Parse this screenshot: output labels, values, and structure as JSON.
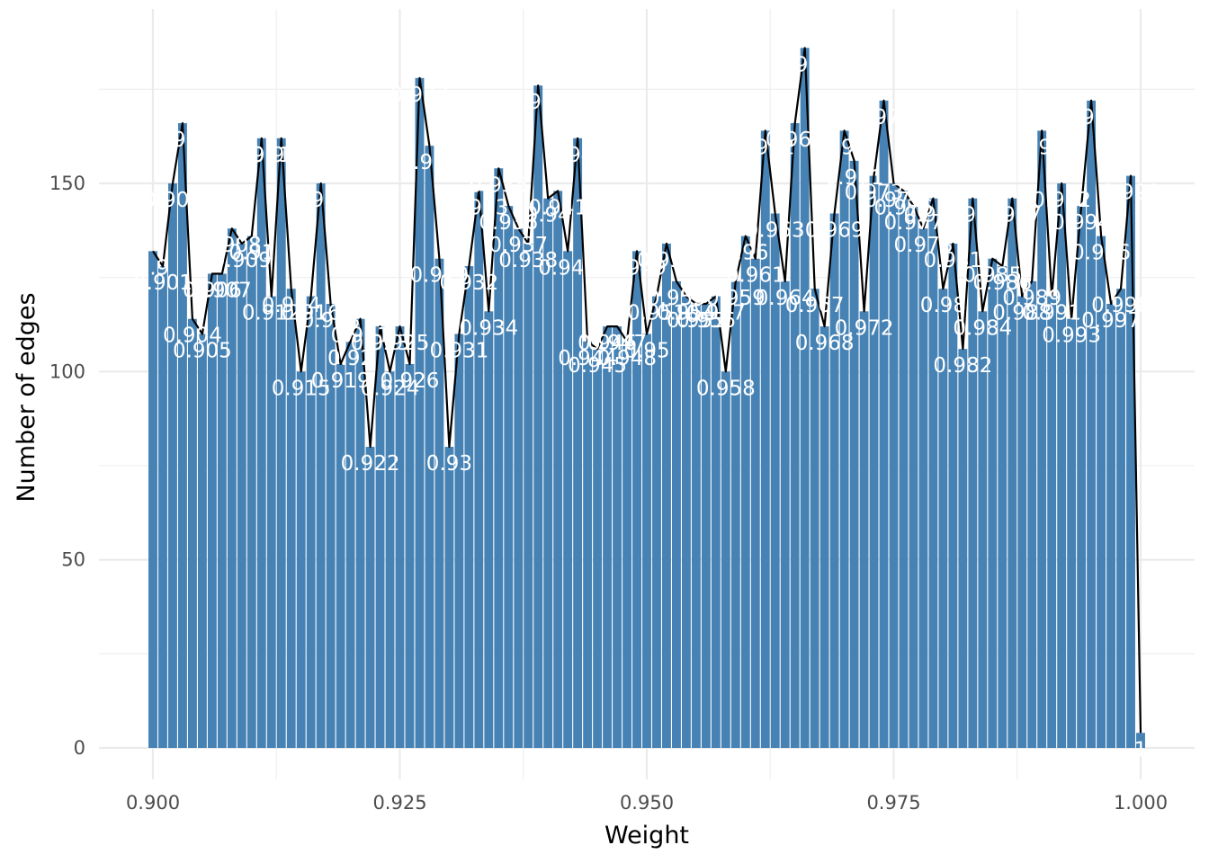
{
  "chart_data": {
    "type": "bar",
    "xlabel": "Weight",
    "ylabel": "Number of edges",
    "xlim": [
      0.895,
      1.001
    ],
    "ylim": [
      -8,
      186
    ],
    "x_ticks": [
      0.9,
      0.925,
      0.95,
      0.975,
      1.0
    ],
    "x_tick_labels": [
      "0.900",
      "0.925",
      "0.950",
      "0.975",
      "1.000"
    ],
    "y_ticks": [
      0,
      50,
      100,
      150
    ],
    "y_tick_labels": [
      "0",
      "50",
      "100",
      "150"
    ],
    "grid": true,
    "legend": "none",
    "bar_color": "#4682B4",
    "line_color": "#000000",
    "label_color": "#ffffff",
    "overlay": "line connecting bar tops",
    "x": [
      0.9,
      0.901,
      0.902,
      0.903,
      0.904,
      0.905,
      0.906,
      0.907,
      0.908,
      0.909,
      0.91,
      0.911,
      0.912,
      0.913,
      0.914,
      0.915,
      0.916,
      0.917,
      0.918,
      0.919,
      0.92,
      0.921,
      0.922,
      0.923,
      0.924,
      0.925,
      0.926,
      0.927,
      0.928,
      0.929,
      0.93,
      0.931,
      0.932,
      0.933,
      0.934,
      0.935,
      0.936,
      0.937,
      0.938,
      0.939,
      0.94,
      0.941,
      0.942,
      0.943,
      0.944,
      0.945,
      0.946,
      0.947,
      0.948,
      0.949,
      0.95,
      0.951,
      0.952,
      0.953,
      0.954,
      0.955,
      0.956,
      0.957,
      0.958,
      0.959,
      0.96,
      0.961,
      0.962,
      0.963,
      0.964,
      0.965,
      0.966,
      0.967,
      0.968,
      0.969,
      0.97,
      0.971,
      0.972,
      0.973,
      0.974,
      0.975,
      0.976,
      0.977,
      0.978,
      0.979,
      0.98,
      0.981,
      0.982,
      0.983,
      0.984,
      0.985,
      0.986,
      0.987,
      0.988,
      0.989,
      0.99,
      0.991,
      0.992,
      0.993,
      0.994,
      0.995,
      0.996,
      0.997,
      0.998,
      0.999,
      1.0
    ],
    "values": [
      132,
      128,
      150,
      166,
      114,
      110,
      126,
      126,
      138,
      134,
      136,
      162,
      120,
      162,
      122,
      100,
      120,
      150,
      118,
      102,
      108,
      114,
      80,
      112,
      100,
      112,
      102,
      178,
      160,
      130,
      80,
      110,
      128,
      148,
      116,
      154,
      144,
      138,
      134,
      176,
      146,
      148,
      132,
      162,
      108,
      106,
      112,
      112,
      108,
      132,
      110,
      120,
      134,
      124,
      120,
      118,
      118,
      120,
      100,
      124,
      136,
      130,
      164,
      142,
      124,
      166,
      186,
      122,
      112,
      142,
      164,
      156,
      116,
      152,
      172,
      150,
      148,
      144,
      138,
      146,
      122,
      134,
      106,
      146,
      116,
      130,
      128,
      146,
      120,
      124,
      164,
      120,
      150,
      114,
      144,
      172,
      136,
      118,
      122,
      152,
      4
    ],
    "labels": [
      "0.9",
      "0.901",
      "0.902",
      "0.903",
      "0.904",
      "0.905",
      "0.906",
      "0.907",
      "0.908",
      "0.909",
      "0.91",
      "0.911",
      "0.912",
      "0.913",
      "0.914",
      "0.915",
      "0.916",
      "0.917",
      "0.918",
      "0.919",
      "0.92",
      "0.921",
      "0.922",
      "0.923",
      "0.924",
      "0.925",
      "0.926",
      "0.927",
      "0.928",
      "0.929",
      "0.93",
      "0.931",
      "0.932",
      "0.933",
      "0.934",
      "0.935",
      "0.936",
      "0.937",
      "0.938",
      "0.939",
      "0.94",
      "0.941",
      "0.942",
      "0.943",
      "0.944",
      "0.945",
      "0.946",
      "0.947",
      "0.948",
      "0.949",
      "0.95",
      "0.951",
      "0.952",
      "0.953",
      "0.954",
      "0.955",
      "0.956",
      "0.957",
      "0.958",
      "0.959",
      "0.96",
      "0.961",
      "0.962",
      "0.963",
      "0.964",
      "0.965",
      "0.966",
      "0.967",
      "0.968",
      "0.969",
      "0.97",
      "0.971",
      "0.972",
      "0.973",
      "0.974",
      "0.975",
      "0.976",
      "0.977",
      "0.978",
      "0.979",
      "0.98",
      "0.981",
      "0.982",
      "0.983",
      "0.984",
      "0.985",
      "0.986",
      "0.987",
      "0.988",
      "0.989",
      "0.99",
      "0.991",
      "0.992",
      "0.993",
      "0.994",
      "0.995",
      "0.996",
      "0.997",
      "0.998",
      "0.999",
      "1"
    ]
  }
}
